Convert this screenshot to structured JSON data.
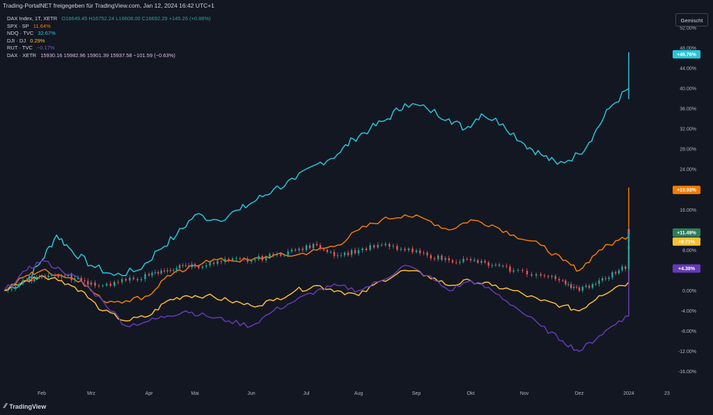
{
  "header": {
    "text": "Trading-PortalNET freigegeben für TradingView.com, Jan 12, 2024 16:42 UTC+1"
  },
  "legend": {
    "dax_index": {
      "symbol": "DAX Index, 1T, XETR",
      "o": "O16649.45",
      "h": "H16752.24",
      "l": "L16608.00",
      "c": "C16692.29",
      "chg": "+145.26 (+0.88%)"
    },
    "spx": {
      "symbol": "SPX · SP",
      "value": "11.64%"
    },
    "ndq": {
      "symbol": "NDQ · TVC",
      "value": "32.67%"
    },
    "dji": {
      "symbol": "DJI · DJ",
      "value": "0.29%"
    },
    "rut": {
      "symbol": "RUT · TVC",
      "value": "−0.17%"
    },
    "dax_xetr": {
      "symbol": "DAX · XETR",
      "ohlc": "15930.16  15982.96  15901.39  15937.58",
      "chg": "−101.59 (−0.63%)"
    }
  },
  "mode_button": "Gemischt",
  "footer": {
    "brand": "TradingView"
  },
  "colors": {
    "background": "#131722",
    "ndq": "#26c6da",
    "spx": "#f57c00",
    "dji": "#fbc02d",
    "rut": "#673ab7",
    "dax_up": "#26a69a",
    "dax_down": "#ef5350",
    "dax_badge": "#2e7d5b",
    "legend_green": "#26a69a",
    "legend_pink": "#e1bee7"
  },
  "chart_data": {
    "type": "line",
    "yunit": "%",
    "ylim": [
      -18,
      52
    ],
    "y_ticks": [
      "52.00%",
      "48.00%",
      "44.00%",
      "40.00%",
      "36.00%",
      "32.00%",
      "28.00%",
      "24.00%",
      "20.00%",
      "16.00%",
      "12.00%",
      "8.00%",
      "4.00%",
      "0.00%",
      "-4.00%",
      "-8.00%",
      "-12.00%",
      "-16.00%"
    ],
    "x_ticks": [
      "Feb",
      "Mrz",
      "Apr",
      "Mai",
      "Jun",
      "Jul",
      "Aug",
      "Sep",
      "Okt",
      "Nov",
      "Dez",
      "2024",
      "23"
    ],
    "grid": false,
    "series": [
      {
        "name": "NDQ · TVC",
        "key": "ndq",
        "badge": "+46.76%",
        "badge_value": 46.76,
        "points": [
          [
            0,
            0
          ],
          [
            0.6,
            2
          ],
          [
            1.0,
            6
          ],
          [
            1.3,
            11
          ],
          [
            1.6,
            8
          ],
          [
            2.0,
            5
          ],
          [
            2.4,
            3
          ],
          [
            2.8,
            4
          ],
          [
            3.2,
            8
          ],
          [
            3.6,
            11
          ],
          [
            4.0,
            15
          ],
          [
            4.4,
            14
          ],
          [
            4.8,
            16
          ],
          [
            5.1,
            18
          ],
          [
            5.4,
            20
          ],
          [
            5.8,
            22
          ],
          [
            6.2,
            25
          ],
          [
            6.6,
            27
          ],
          [
            6.9,
            30
          ],
          [
            7.2,
            32
          ],
          [
            7.5,
            34
          ],
          [
            7.8,
            37
          ],
          [
            8.2,
            36
          ],
          [
            8.6,
            34
          ],
          [
            8.9,
            32
          ],
          [
            9.2,
            35
          ],
          [
            9.6,
            33
          ],
          [
            10.0,
            29
          ],
          [
            10.3,
            27
          ],
          [
            10.6,
            25
          ],
          [
            11.0,
            27
          ],
          [
            11.3,
            31
          ],
          [
            11.6,
            36
          ],
          [
            12.0,
            40
          ],
          [
            12.3,
            40
          ],
          [
            12.6,
            38
          ],
          [
            13.0,
            41
          ],
          [
            13.3,
            45
          ],
          [
            13.6,
            47
          ],
          [
            14.0,
            44
          ],
          [
            14.3,
            42
          ],
          [
            14.6,
            44
          ],
          [
            14.9,
            46.76
          ]
        ]
      },
      {
        "name": "SPX · SP",
        "key": "spx",
        "badge": "+19.93%",
        "badge_value": 19.93,
        "points": [
          [
            0,
            0
          ],
          [
            0.6,
            3
          ],
          [
            1.0,
            4
          ],
          [
            1.4,
            3
          ],
          [
            1.8,
            2
          ],
          [
            2.2,
            -2
          ],
          [
            2.6,
            -2
          ],
          [
            3.0,
            -1
          ],
          [
            3.4,
            3
          ],
          [
            3.8,
            4
          ],
          [
            4.2,
            6
          ],
          [
            4.6,
            6
          ],
          [
            5.0,
            6
          ],
          [
            5.4,
            7
          ],
          [
            5.8,
            7
          ],
          [
            6.2,
            8
          ],
          [
            6.6,
            9
          ],
          [
            7.0,
            12
          ],
          [
            7.4,
            14
          ],
          [
            7.8,
            15
          ],
          [
            8.2,
            14
          ],
          [
            8.6,
            12
          ],
          [
            9.0,
            14
          ],
          [
            9.4,
            13
          ],
          [
            9.8,
            11
          ],
          [
            10.3,
            9
          ],
          [
            10.7,
            6
          ],
          [
            11.0,
            4
          ],
          [
            11.4,
            8
          ],
          [
            11.8,
            10
          ],
          [
            12.2,
            12
          ],
          [
            12.6,
            14
          ],
          [
            13.0,
            15
          ],
          [
            13.4,
            17
          ],
          [
            13.8,
            20
          ],
          [
            14.2,
            19
          ],
          [
            14.6,
            20
          ],
          [
            14.9,
            19.93
          ]
        ]
      },
      {
        "name": "DJI · DJ",
        "key": "dji",
        "badge": "+9.71%",
        "badge_value": 9.71,
        "points": [
          [
            0,
            0
          ],
          [
            0.6,
            2
          ],
          [
            1.0,
            3
          ],
          [
            1.4,
            2
          ],
          [
            1.8,
            0
          ],
          [
            2.2,
            -4
          ],
          [
            2.6,
            -6
          ],
          [
            3.0,
            -5
          ],
          [
            3.4,
            -2
          ],
          [
            3.8,
            -1
          ],
          [
            4.2,
            -1
          ],
          [
            4.6,
            -2
          ],
          [
            5.0,
            -3
          ],
          [
            5.4,
            -2
          ],
          [
            5.8,
            0
          ],
          [
            6.2,
            1
          ],
          [
            6.6,
            0
          ],
          [
            7.0,
            -1
          ],
          [
            7.4,
            2
          ],
          [
            7.8,
            4
          ],
          [
            8.2,
            3
          ],
          [
            8.6,
            1
          ],
          [
            9.0,
            2
          ],
          [
            9.4,
            1
          ],
          [
            9.8,
            0
          ],
          [
            10.3,
            -2
          ],
          [
            10.7,
            -3
          ],
          [
            11.0,
            -4
          ],
          [
            11.4,
            -1
          ],
          [
            11.8,
            1
          ],
          [
            12.2,
            2
          ],
          [
            12.6,
            5
          ],
          [
            13.0,
            7
          ],
          [
            13.4,
            8
          ],
          [
            13.8,
            10
          ],
          [
            14.2,
            11
          ],
          [
            14.6,
            10.5
          ],
          [
            14.9,
            9.71
          ]
        ]
      },
      {
        "name": "RUT · TVC",
        "key": "rut",
        "badge": "+4.38%",
        "badge_value": 4.38,
        "points": [
          [
            0,
            0
          ],
          [
            0.6,
            4
          ],
          [
            1.0,
            6
          ],
          [
            1.4,
            4
          ],
          [
            1.8,
            2
          ],
          [
            2.2,
            -2
          ],
          [
            2.6,
            -7
          ],
          [
            3.0,
            -6
          ],
          [
            3.4,
            -5
          ],
          [
            3.8,
            -4
          ],
          [
            4.2,
            -5
          ],
          [
            4.6,
            -6
          ],
          [
            5.0,
            -7
          ],
          [
            5.4,
            -4
          ],
          [
            5.8,
            -2
          ],
          [
            6.2,
            0
          ],
          [
            6.6,
            1
          ],
          [
            7.0,
            0
          ],
          [
            7.4,
            2
          ],
          [
            7.8,
            5
          ],
          [
            8.2,
            3
          ],
          [
            8.6,
            0
          ],
          [
            9.0,
            2
          ],
          [
            9.4,
            0
          ],
          [
            9.8,
            -3
          ],
          [
            10.3,
            -7
          ],
          [
            10.7,
            -10
          ],
          [
            11.0,
            -12
          ],
          [
            11.4,
            -9
          ],
          [
            11.8,
            -6
          ],
          [
            12.2,
            -4
          ],
          [
            12.6,
            -2
          ],
          [
            13.0,
            3
          ],
          [
            13.4,
            6
          ],
          [
            13.8,
            9
          ],
          [
            14.2,
            7
          ],
          [
            14.6,
            4.5
          ],
          [
            14.9,
            4.38
          ]
        ]
      },
      {
        "name": "DAX · XETR",
        "key": "dax",
        "badge": "+11.49%",
        "badge_value": 11.49,
        "points": [
          [
            0,
            0
          ],
          [
            0.6,
            2
          ],
          [
            1.0,
            3
          ],
          [
            1.4,
            3
          ],
          [
            1.8,
            2
          ],
          [
            2.2,
            1
          ],
          [
            2.6,
            2
          ],
          [
            3.0,
            3
          ],
          [
            3.4,
            4
          ],
          [
            3.8,
            5
          ],
          [
            4.2,
            5
          ],
          [
            4.6,
            6
          ],
          [
            5.0,
            6
          ],
          [
            5.4,
            7
          ],
          [
            5.8,
            8
          ],
          [
            6.2,
            9
          ],
          [
            6.6,
            7
          ],
          [
            7.0,
            8
          ],
          [
            7.4,
            9
          ],
          [
            7.8,
            8
          ],
          [
            8.2,
            7
          ],
          [
            8.6,
            6
          ],
          [
            9.0,
            6
          ],
          [
            9.4,
            5
          ],
          [
            9.8,
            4
          ],
          [
            10.3,
            3
          ],
          [
            10.7,
            2
          ],
          [
            11.0,
            0
          ],
          [
            11.4,
            2
          ],
          [
            11.8,
            4
          ],
          [
            12.2,
            6
          ],
          [
            12.6,
            8
          ],
          [
            13.0,
            10
          ],
          [
            13.4,
            11
          ],
          [
            13.8,
            12
          ],
          [
            14.2,
            11
          ],
          [
            14.6,
            12
          ],
          [
            14.9,
            11.49
          ]
        ]
      }
    ]
  }
}
